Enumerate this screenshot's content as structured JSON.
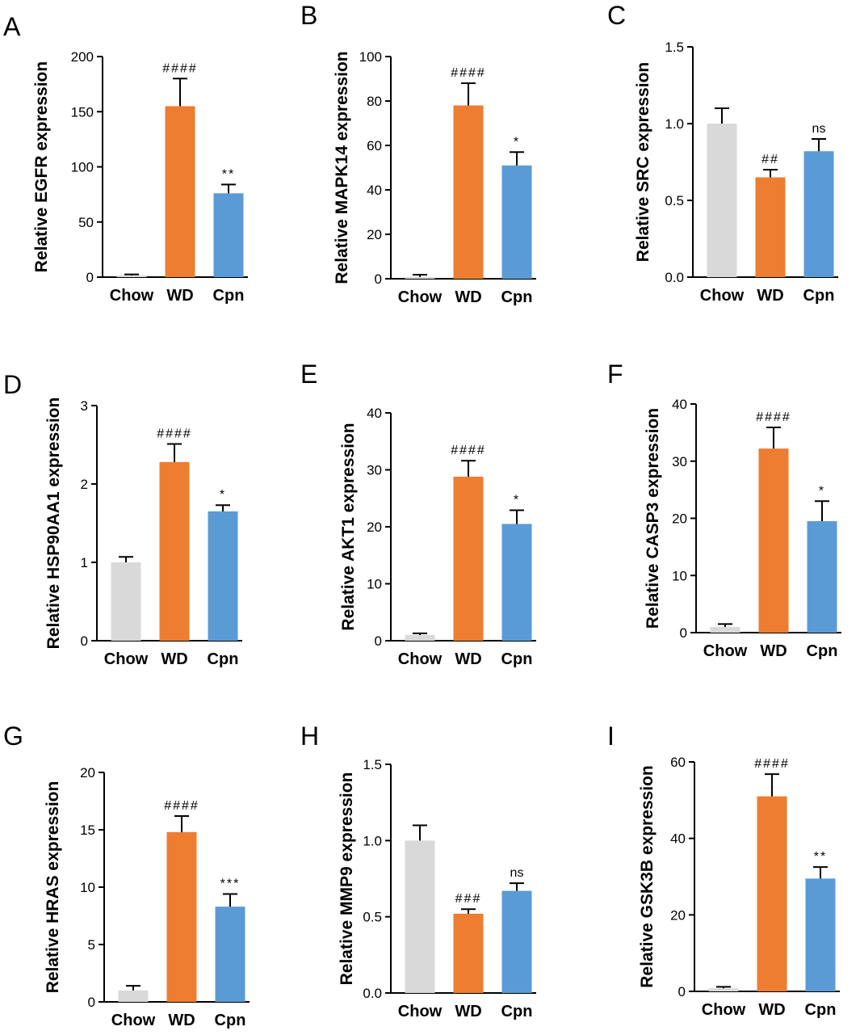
{
  "chart_data": [
    {
      "type": "bar",
      "panel": "A",
      "categories": [
        "Chow",
        "WD",
        "Cpn"
      ],
      "values": [
        1.5,
        155,
        76
      ],
      "errors": [
        1,
        25,
        8
      ],
      "annotations": [
        "",
        "####",
        "**"
      ],
      "ylabel": "Relative EGFR expression",
      "ylim": [
        0,
        200
      ],
      "yticks": [
        0,
        50,
        100,
        150,
        200
      ],
      "colors": [
        "#d9d9d9",
        "#ed7d31",
        "#5b9bd5"
      ]
    },
    {
      "type": "bar",
      "panel": "B",
      "categories": [
        "Chow",
        "WD",
        "Cpn"
      ],
      "values": [
        0.8,
        78,
        51
      ],
      "errors": [
        1,
        10,
        6
      ],
      "annotations": [
        "",
        "####",
        "*"
      ],
      "ylabel": "Relative MAPK14 expression",
      "ylim": [
        0,
        100
      ],
      "yticks": [
        0,
        20,
        40,
        60,
        80,
        100
      ],
      "colors": [
        "#d9d9d9",
        "#ed7d31",
        "#5b9bd5"
      ]
    },
    {
      "type": "bar",
      "panel": "C",
      "categories": [
        "Chow",
        "WD",
        "Cpn"
      ],
      "values": [
        1.0,
        0.65,
        0.82
      ],
      "errors": [
        0.1,
        0.05,
        0.08
      ],
      "annotations": [
        "",
        "##",
        "ns"
      ],
      "ylabel": "Relative SRC expression",
      "ylim": [
        0,
        1.5
      ],
      "yticks": [
        "0.0",
        "0.5",
        "1.0",
        "1.5"
      ],
      "colors": [
        "#d9d9d9",
        "#ed7d31",
        "#5b9bd5"
      ]
    },
    {
      "type": "bar",
      "panel": "D",
      "categories": [
        "Chow",
        "WD",
        "Cpn"
      ],
      "values": [
        1.0,
        2.28,
        1.65
      ],
      "errors": [
        0.07,
        0.23,
        0.08
      ],
      "annotations": [
        "",
        "####",
        "*"
      ],
      "ylabel": "Relative HSP90AA1 expression",
      "ylim": [
        0,
        3
      ],
      "yticks": [
        0,
        1,
        2,
        3
      ],
      "colors": [
        "#d9d9d9",
        "#ed7d31",
        "#5b9bd5"
      ]
    },
    {
      "type": "bar",
      "panel": "E",
      "categories": [
        "Chow",
        "WD",
        "Cpn"
      ],
      "values": [
        1.0,
        28.8,
        20.5
      ],
      "errors": [
        0.3,
        2.8,
        2.4
      ],
      "annotations": [
        "",
        "####",
        "*"
      ],
      "ylabel": "Relative AKT1 expression",
      "ylim": [
        0,
        40
      ],
      "yticks": [
        0,
        10,
        20,
        30,
        40
      ],
      "colors": [
        "#d9d9d9",
        "#ed7d31",
        "#5b9bd5"
      ]
    },
    {
      "type": "bar",
      "panel": "F",
      "categories": [
        "Chow",
        "WD",
        "Cpn"
      ],
      "values": [
        1.0,
        32.2,
        19.5
      ],
      "errors": [
        0.5,
        3.7,
        3.5
      ],
      "annotations": [
        "",
        "####",
        "*"
      ],
      "ylabel": "Relative CASP3 expression",
      "ylim": [
        0,
        40
      ],
      "yticks": [
        0,
        10,
        20,
        30,
        40
      ],
      "colors": [
        "#d9d9d9",
        "#ed7d31",
        "#5b9bd5"
      ]
    },
    {
      "type": "bar",
      "panel": "G",
      "categories": [
        "Chow",
        "WD",
        "Cpn"
      ],
      "values": [
        1.0,
        14.8,
        8.3
      ],
      "errors": [
        0.4,
        1.4,
        1.1
      ],
      "annotations": [
        "",
        "####",
        "***"
      ],
      "ylabel": "Relative HRAS expression",
      "ylim": [
        0,
        20
      ],
      "yticks": [
        0,
        5,
        10,
        15,
        20
      ],
      "colors": [
        "#d9d9d9",
        "#ed7d31",
        "#5b9bd5"
      ]
    },
    {
      "type": "bar",
      "panel": "H",
      "categories": [
        "Chow",
        "WD",
        "Cpn"
      ],
      "values": [
        1.0,
        0.52,
        0.67
      ],
      "errors": [
        0.1,
        0.03,
        0.05
      ],
      "annotations": [
        "",
        "###",
        "ns"
      ],
      "ylabel": "Relative MMP9 expression",
      "ylim": [
        0,
        1.5
      ],
      "yticks": [
        "0.0",
        "0.5",
        "1.0",
        "1.5"
      ],
      "colors": [
        "#d9d9d9",
        "#ed7d31",
        "#5b9bd5"
      ]
    },
    {
      "type": "bar",
      "panel": "I",
      "categories": [
        "Chow",
        "WD",
        "Cpn"
      ],
      "values": [
        0.8,
        51,
        29.5
      ],
      "errors": [
        0.4,
        5.8,
        3.0
      ],
      "annotations": [
        "",
        "####",
        "**"
      ],
      "ylabel": "Relative GSK3B expression",
      "ylim": [
        0,
        60
      ],
      "yticks": [
        0,
        20,
        40,
        60
      ],
      "colors": [
        "#d9d9d9",
        "#ed7d31",
        "#5b9bd5"
      ]
    }
  ]
}
